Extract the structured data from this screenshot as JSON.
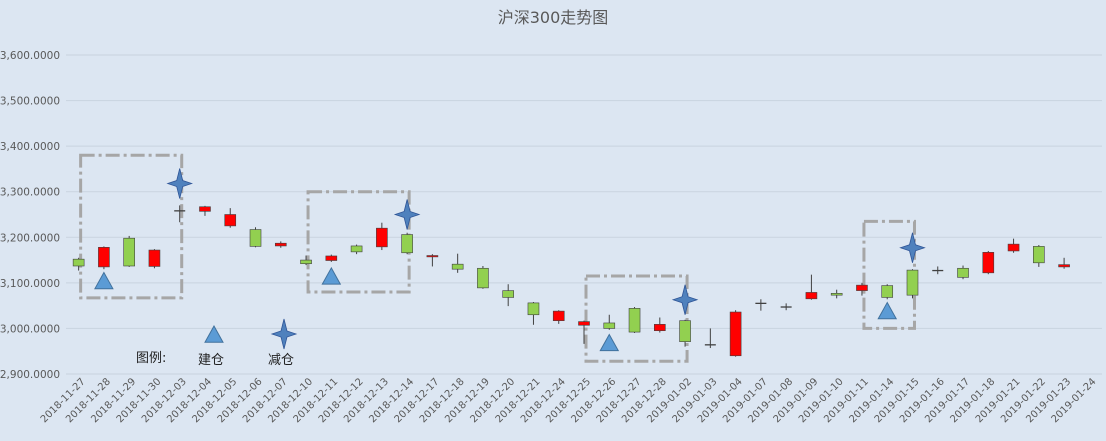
{
  "chart_data": {
    "type": "candlestick",
    "title": "沪深300走势图",
    "ylim": [
      2900,
      3600
    ],
    "yticks": [
      "2,900.0000",
      "3,000.0000",
      "3,100.0000",
      "3,200.0000",
      "3,300.0000",
      "3,400.0000",
      "3,500.0000",
      "3,600.0000"
    ],
    "grid": true,
    "colors": {
      "up": "#ff0000",
      "down": "#92d050",
      "wick": "#404040",
      "triangle": "#5b9bd5",
      "star": "#4f81bd",
      "box": "#a6a6a6"
    },
    "categories": [
      "2018-11-27",
      "2018-11-28",
      "2018-11-29",
      "2018-11-30",
      "2018-12-03",
      "2018-12-04",
      "2018-12-05",
      "2018-12-06",
      "2018-12-07",
      "2018-12-10",
      "2018-12-11",
      "2018-12-12",
      "2018-12-13",
      "2018-12-14",
      "2018-12-17",
      "2018-12-18",
      "2018-12-19",
      "2018-12-20",
      "2018-12-21",
      "2018-12-24",
      "2018-12-25",
      "2018-12-26",
      "2018-12-27",
      "2018-12-28",
      "2019-01-02",
      "2019-01-03",
      "2019-01-04",
      "2019-01-07",
      "2019-01-08",
      "2019-01-09",
      "2019-01-10",
      "2019-01-11",
      "2019-01-14",
      "2019-01-15",
      "2019-01-16",
      "2019-01-17",
      "2019-01-18",
      "2019-01-21",
      "2019-01-22",
      "2019-01-23",
      "2019-01-24"
    ],
    "candles": [
      {
        "open": 3137,
        "close": 3152,
        "high": 3155,
        "low": 3127
      },
      {
        "open": 3178,
        "close": 3135,
        "high": 3180,
        "low": 3130
      },
      {
        "open": 3137,
        "close": 3198,
        "high": 3203,
        "low": 3135
      },
      {
        "open": 3172,
        "close": 3136,
        "high": 3174,
        "low": 3132
      },
      {
        "open": 3258,
        "close": 3258,
        "high": 3270,
        "low": 3233
      },
      {
        "open": 3267,
        "close": 3257,
        "high": 3269,
        "low": 3247
      },
      {
        "open": 3250,
        "close": 3225,
        "high": 3264,
        "low": 3221
      },
      {
        "open": 3180,
        "close": 3217,
        "high": 3222,
        "low": 3178
      },
      {
        "open": 3187,
        "close": 3181,
        "high": 3191,
        "low": 3177
      },
      {
        "open": 3142,
        "close": 3150,
        "high": 3160,
        "low": 3139
      },
      {
        "open": 3159,
        "close": 3149,
        "high": 3162,
        "low": 3146
      },
      {
        "open": 3168,
        "close": 3181,
        "high": 3184,
        "low": 3163
      },
      {
        "open": 3220,
        "close": 3179,
        "high": 3232,
        "low": 3172
      },
      {
        "open": 3166,
        "close": 3206,
        "high": 3210,
        "low": 3163
      },
      {
        "open": 3160,
        "close": 3157,
        "high": 3163,
        "low": 3136
      },
      {
        "open": 3130,
        "close": 3141,
        "high": 3164,
        "low": 3122
      },
      {
        "open": 3089,
        "close": 3132,
        "high": 3137,
        "low": 3087
      },
      {
        "open": 3068,
        "close": 3083,
        "high": 3097,
        "low": 3049
      },
      {
        "open": 3030,
        "close": 3056,
        "high": 3058,
        "low": 3008
      },
      {
        "open": 3038,
        "close": 3017,
        "high": 3040,
        "low": 3010
      },
      {
        "open": 3015,
        "close": 3007,
        "high": 3017,
        "low": 2966
      },
      {
        "open": 3000,
        "close": 3012,
        "high": 3030,
        "low": 2997
      },
      {
        "open": 2992,
        "close": 3044,
        "high": 3047,
        "low": 2990
      },
      {
        "open": 3009,
        "close": 2995,
        "high": 3024,
        "low": 2991
      },
      {
        "open": 2971,
        "close": 3017,
        "high": 3019,
        "low": 2960
      },
      {
        "open": 2964,
        "close": 2964,
        "high": 3000,
        "low": 2957
      },
      {
        "open": 3036,
        "close": 2940,
        "high": 3040,
        "low": 2938
      },
      {
        "open": 3055,
        "close": 3055,
        "high": 3064,
        "low": 3039
      },
      {
        "open": 3047,
        "close": 3047,
        "high": 3055,
        "low": 3040
      },
      {
        "open": 3079,
        "close": 3065,
        "high": 3118,
        "low": 3063
      },
      {
        "open": 3073,
        "close": 3077,
        "high": 3085,
        "low": 3066
      },
      {
        "open": 3095,
        "close": 3083,
        "high": 3100,
        "low": 3072
      },
      {
        "open": 3068,
        "close": 3094,
        "high": 3097,
        "low": 3064
      },
      {
        "open": 3073,
        "close": 3128,
        "high": 3130,
        "low": 3066
      },
      {
        "open": 3127,
        "close": 3127,
        "high": 3136,
        "low": 3119
      },
      {
        "open": 3112,
        "close": 3132,
        "high": 3138,
        "low": 3108
      },
      {
        "open": 3167,
        "close": 3122,
        "high": 3170,
        "low": 3119
      },
      {
        "open": 3185,
        "close": 3170,
        "high": 3197,
        "low": 3166
      },
      {
        "open": 3144,
        "close": 3180,
        "high": 3183,
        "low": 3135
      },
      {
        "open": 3140,
        "close": 3135,
        "high": 3155,
        "low": 3131
      },
      {
        "open": null,
        "close": null,
        "high": null,
        "low": null
      }
    ],
    "buy_markers": [
      {
        "index": 1,
        "y": 3103
      },
      {
        "index": 10,
        "y": 3113
      },
      {
        "index": 21,
        "y": 2967
      },
      {
        "index": 32,
        "y": 3037
      }
    ],
    "sell_markers": [
      {
        "index": 4,
        "y": 3318
      },
      {
        "index": 13,
        "y": 3250
      },
      {
        "index": 24,
        "y": 3063
      },
      {
        "index": 33,
        "y": 3177
      }
    ],
    "boxes": [
      {
        "from": 0.5,
        "to": 4.5,
        "y1": 3380,
        "y2": 3067
      },
      {
        "from": 9.5,
        "to": 13.5,
        "y1": 3300,
        "y2": 3080
      },
      {
        "from": 20.5,
        "to": 24.5,
        "y1": 3115,
        "y2": 2928
      },
      {
        "from": 31.5,
        "to": 33.5,
        "y1": 3235,
        "y2": 3000
      }
    ],
    "legend": {
      "label": "图例:",
      "buy": "建仓",
      "sell": "减仓"
    }
  }
}
